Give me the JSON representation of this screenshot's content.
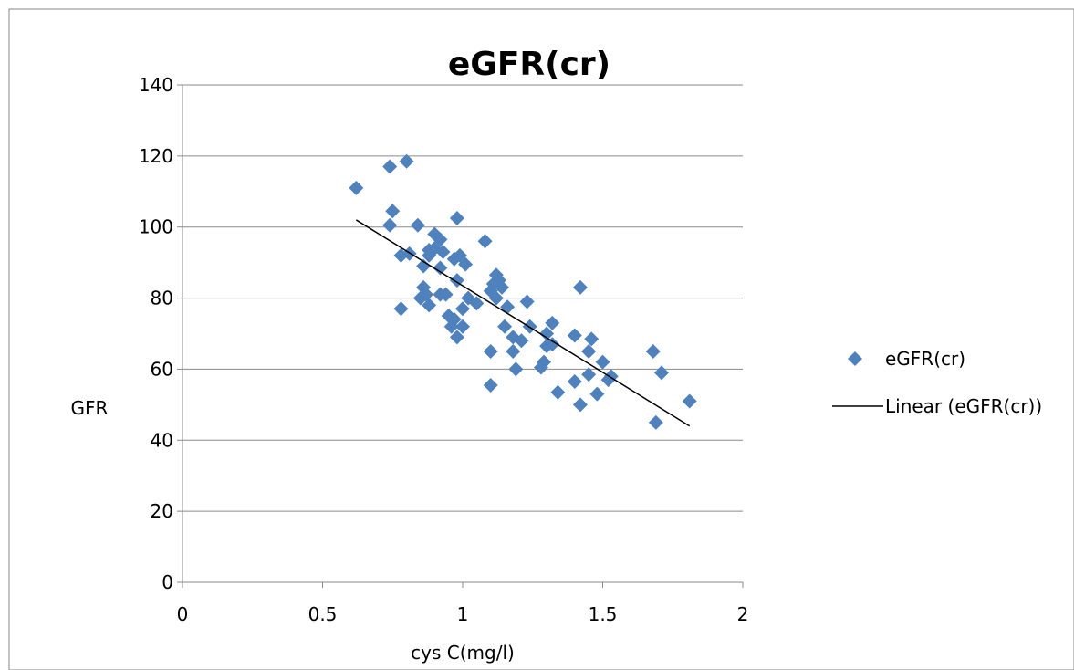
{
  "chart_data": {
    "type": "scatter",
    "title": "eGFR(cr)",
    "xlabel": "cys C(mg/l)",
    "ylabel": "GFR",
    "xlim": [
      0,
      2
    ],
    "ylim": [
      0,
      140
    ],
    "x_ticks": [
      "0",
      "0.5",
      "1",
      "1.5",
      "2"
    ],
    "y_ticks": [
      "0",
      "20",
      "40",
      "60",
      "80",
      "100",
      "120",
      "140"
    ],
    "grid": "horizontal",
    "legend_position": "right",
    "series": [
      {
        "name": "eGFR(cr)",
        "color": "#4F81BD",
        "marker": "diamond",
        "points": [
          [
            0.62,
            111
          ],
          [
            0.74,
            117
          ],
          [
            0.8,
            118.5
          ],
          [
            0.75,
            104.5
          ],
          [
            0.74,
            100.5
          ],
          [
            0.84,
            100.5
          ],
          [
            0.98,
            102.5
          ],
          [
            0.78,
            92
          ],
          [
            0.81,
            92.5
          ],
          [
            0.86,
            89
          ],
          [
            0.88,
            93.5
          ],
          [
            0.88,
            92
          ],
          [
            0.9,
            98
          ],
          [
            0.92,
            96.5
          ],
          [
            0.9,
            94
          ],
          [
            0.93,
            93
          ],
          [
            0.92,
            88.5
          ],
          [
            0.97,
            91
          ],
          [
            0.99,
            92
          ],
          [
            1.01,
            89.5
          ],
          [
            0.98,
            85
          ],
          [
            1.08,
            96
          ],
          [
            0.85,
            80
          ],
          [
            0.86,
            83
          ],
          [
            0.88,
            78
          ],
          [
            0.87,
            81
          ],
          [
            0.78,
            77
          ],
          [
            0.92,
            81
          ],
          [
            0.94,
            81
          ],
          [
            0.96,
            72
          ],
          [
            0.95,
            75
          ],
          [
            0.97,
            74
          ],
          [
            0.98,
            69
          ],
          [
            1.0,
            72
          ],
          [
            1.0,
            77
          ],
          [
            1.02,
            80
          ],
          [
            1.05,
            78.5
          ],
          [
            1.1,
            82
          ],
          [
            1.11,
            84
          ],
          [
            1.12,
            86.5
          ],
          [
            1.13,
            85
          ],
          [
            1.14,
            83
          ],
          [
            1.12,
            80
          ],
          [
            1.15,
            72
          ],
          [
            1.16,
            77.5
          ],
          [
            1.18,
            69
          ],
          [
            1.21,
            68
          ],
          [
            1.23,
            79
          ],
          [
            1.24,
            72
          ],
          [
            1.1,
            65
          ],
          [
            1.18,
            65
          ],
          [
            1.19,
            60
          ],
          [
            1.1,
            55.5
          ],
          [
            1.28,
            60.5
          ],
          [
            1.29,
            62
          ],
          [
            1.3,
            70
          ],
          [
            1.3,
            66.5
          ],
          [
            1.32,
            73
          ],
          [
            1.32,
            67
          ],
          [
            1.34,
            53.5
          ],
          [
            1.4,
            69.5
          ],
          [
            1.42,
            83
          ],
          [
            1.4,
            56.5
          ],
          [
            1.42,
            50
          ],
          [
            1.45,
            58.5
          ],
          [
            1.45,
            65
          ],
          [
            1.46,
            68.5
          ],
          [
            1.48,
            53
          ],
          [
            1.5,
            62
          ],
          [
            1.52,
            57
          ],
          [
            1.53,
            58
          ],
          [
            1.68,
            65
          ],
          [
            1.71,
            59
          ],
          [
            1.69,
            45
          ],
          [
            1.81,
            51
          ]
        ]
      }
    ],
    "trendline": {
      "name": "Linear (eGFR(cr))",
      "color": "#000000",
      "x": [
        0.62,
        1.81
      ],
      "y": [
        102,
        44
      ]
    }
  }
}
